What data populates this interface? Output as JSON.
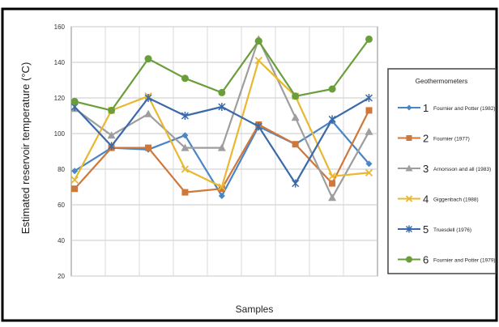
{
  "chart_data": {
    "type": "line",
    "title": "",
    "xlabel": "Samples",
    "ylabel": "Estimated reservoir temperature (°C)",
    "ylim": [
      20,
      160
    ],
    "yticks": [
      20,
      40,
      60,
      80,
      100,
      120,
      140,
      160
    ],
    "x": [
      1,
      2,
      3,
      4,
      5,
      6,
      7,
      8,
      9
    ],
    "grid": true,
    "legend_position": "right",
    "legend_title": "Geothermometers",
    "series": [
      {
        "number": "1",
        "name": "Fournier and Potter (1982)",
        "color": "#4a86c5",
        "marker": "diamond",
        "values": [
          79,
          92,
          91,
          99,
          65,
          104,
          94,
          107,
          83
        ]
      },
      {
        "number": "2",
        "name": "Fournier (1977)",
        "color": "#d0773a",
        "marker": "square",
        "values": [
          69,
          92,
          92,
          67,
          69,
          105,
          94,
          72,
          113
        ]
      },
      {
        "number": "3",
        "name": "Arnorsson and all (1983)",
        "color": "#9e9e9e",
        "marker": "triangle",
        "values": [
          114,
          99,
          111,
          92,
          92,
          153,
          109,
          64,
          101
        ]
      },
      {
        "number": "4",
        "name": "Giggenbach (1988)",
        "color": "#e8b830",
        "marker": "x",
        "values": [
          74,
          113,
          121,
          80,
          70,
          141,
          121,
          76,
          78
        ]
      },
      {
        "number": "5",
        "name": "Truesdell (1976)",
        "color": "#3a6aa8",
        "marker": "star",
        "values": [
          115,
          93,
          120,
          110,
          115,
          104,
          72,
          108,
          120
        ]
      },
      {
        "number": "6",
        "name": "Fournier and Potter (1979)",
        "color": "#6a9e3a",
        "marker": "circle",
        "values": [
          118,
          113,
          142,
          131,
          123,
          152,
          121,
          125,
          153
        ]
      }
    ]
  }
}
